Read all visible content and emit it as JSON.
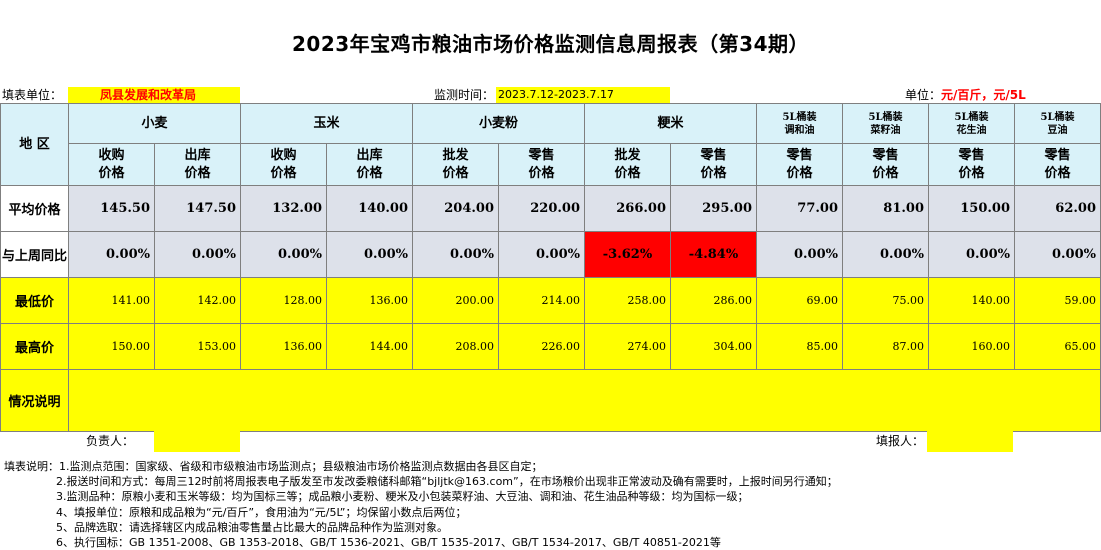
{
  "title": "2023年宝鸡市粮油市场价格监测信息周报表（第34期）",
  "info": {
    "unit_label": "填表单位：",
    "unit_value": "凤县发展和改革局",
    "period_label": "监测时间：",
    "period_value": "2023.7.12-2023.7.17",
    "price_unit_label": "单位：",
    "price_unit_value": "元/百斤，元/5L"
  },
  "table": {
    "region_header": "地  区",
    "groups": [
      {
        "label": "小麦"
      },
      {
        "label": "玉米"
      },
      {
        "label": "小麦粉"
      },
      {
        "label": "粳米"
      },
      {
        "line1": "5L桶装",
        "line2": "调和油"
      },
      {
        "line1": "5L桶装",
        "line2": "菜籽油"
      },
      {
        "line1": "5L桶装",
        "line2": "花生油"
      },
      {
        "line1": "5L桶装",
        "line2": "豆油"
      }
    ],
    "subheaders": [
      {
        "line1": "收购",
        "line2": "价格"
      },
      {
        "line1": "出库",
        "line2": "价格"
      },
      {
        "line1": "收购",
        "line2": "价格"
      },
      {
        "line1": "出库",
        "line2": "价格"
      },
      {
        "line1": "批发",
        "line2": "价格"
      },
      {
        "line1": "零售",
        "line2": "价格"
      },
      {
        "line1": "批发",
        "line2": "价格"
      },
      {
        "line1": "零售",
        "line2": "价格"
      },
      {
        "line1": "零售",
        "line2": "价格"
      },
      {
        "line1": "零售",
        "line2": "价格"
      },
      {
        "line1": "零售",
        "line2": "价格"
      },
      {
        "line1": "零售",
        "line2": "价格"
      }
    ],
    "rows": {
      "avg": {
        "label": "平均价格",
        "values": [
          "145.50",
          "147.50",
          "132.00",
          "140.00",
          "204.00",
          "220.00",
          "266.00",
          "295.00",
          "77.00",
          "81.00",
          "150.00",
          "62.00"
        ]
      },
      "wow": {
        "label": "与上周同比",
        "values": [
          "0.00%",
          "0.00%",
          "0.00%",
          "0.00%",
          "0.00%",
          "0.00%",
          "-3.62%",
          "-4.84%",
          "0.00%",
          "0.00%",
          "0.00%",
          "0.00%"
        ]
      },
      "min": {
        "label": "最低价",
        "values": [
          "141.00",
          "142.00",
          "128.00",
          "136.00",
          "200.00",
          "214.00",
          "258.00",
          "286.00",
          "69.00",
          "75.00",
          "140.00",
          "59.00"
        ]
      },
      "max": {
        "label": "最高价",
        "values": [
          "150.00",
          "153.00",
          "136.00",
          "144.00",
          "208.00",
          "226.00",
          "274.00",
          "304.00",
          "85.00",
          "87.00",
          "160.00",
          "65.00"
        ]
      },
      "notes": {
        "label": "情况说明",
        "value": ""
      }
    }
  },
  "footer": {
    "responsible_label": "负责人：",
    "responsible_value": "",
    "filler_label": "填报人：",
    "filler_value": ""
  },
  "notes": [
    "填表说明：1.监测点范围：国家级、省级和市级粮油市场监测点；县级粮油市场价格监测点数据由各县区自定；",
    "2.报送时间和方式：每周三12时前将周报表电子版发至市发改委粮储科邮箱“bjljtk@163.com”，在市场粮价出现非正常波动及确有需要时，上报时间另行通知；",
    "3.监测品种：原粮小麦和玉米等级：均为国标三等；成品粮小麦粉、粳米及小包装菜籽油、大豆油、调和油、花生油品种等级：均为国标一级；",
    "4、填报单位：原粮和成品粮为“元/百斤”，食用油为“元/5L”；均保留小数点后两位；",
    "5、品牌选取：请选择辖区内成品粮油零售量占比最大的品牌品种作为监测对象。",
    "6、执行国标：GB 1351-2008、GB 1353-2018、GB/T 1536-2021、GB/T 1535-2017、GB/T 1534-2017、GB/T 40851-2021等"
  ]
}
